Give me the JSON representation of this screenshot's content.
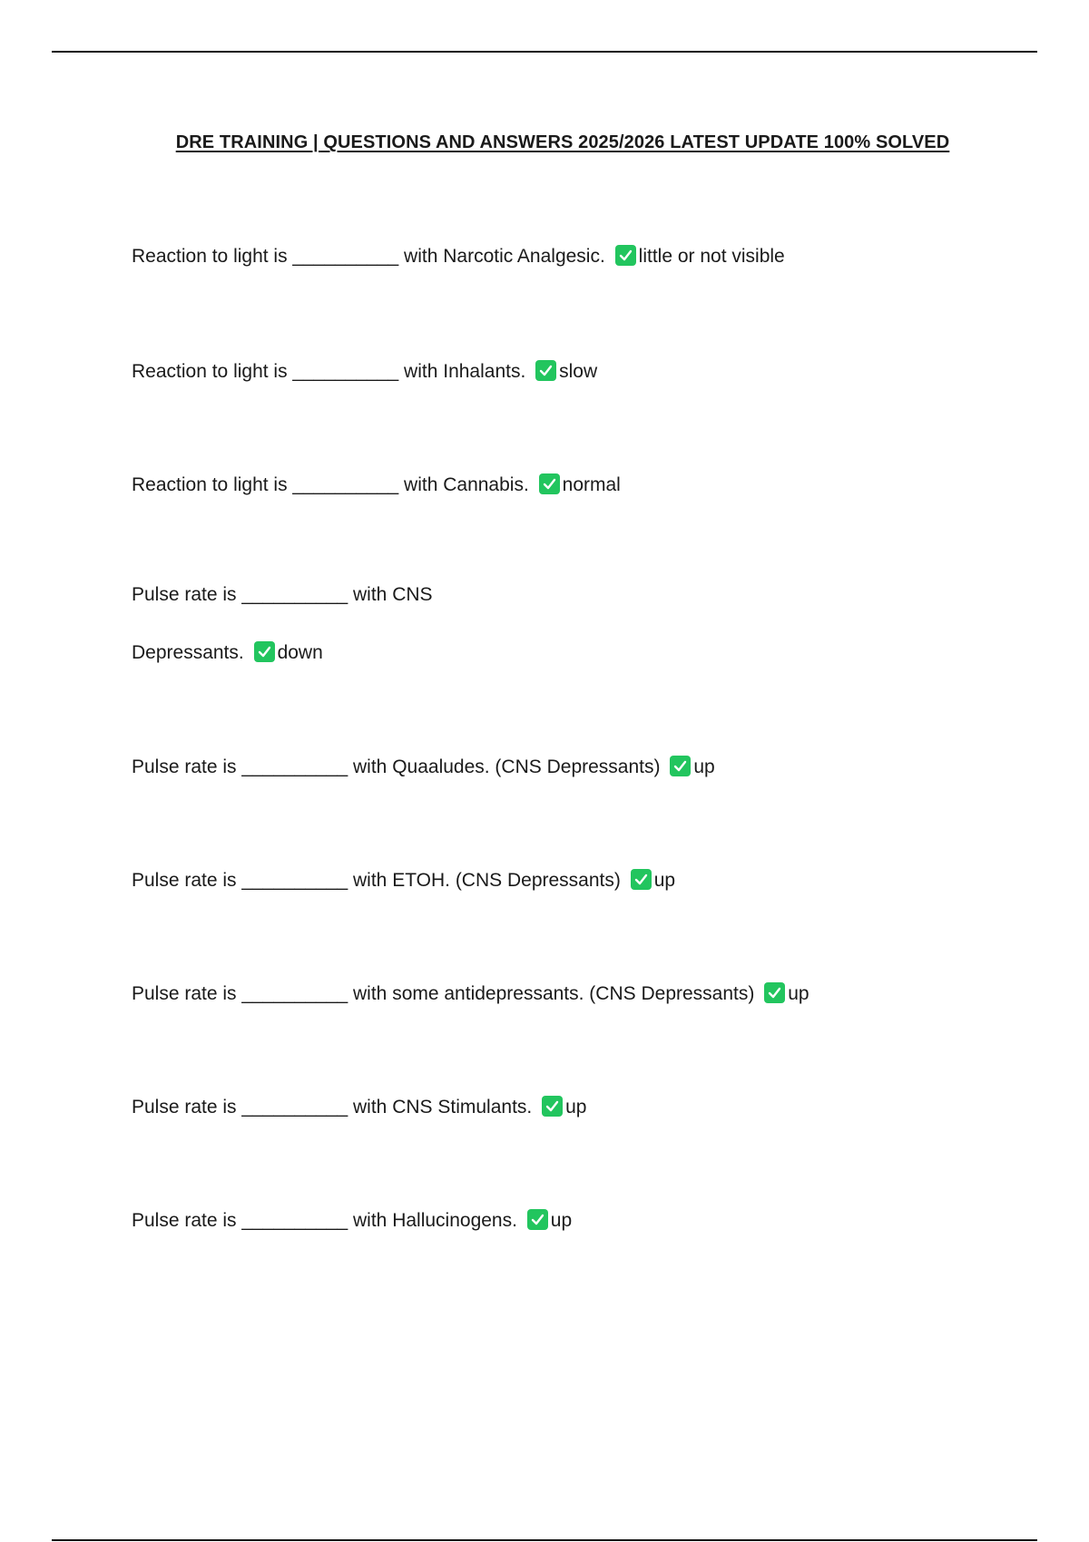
{
  "document": {
    "title": "DRE TRAINING | QUESTIONS AND ANSWERS 2025/2026 LATEST UPDATE 100% SOLVED",
    "items": [
      {
        "question": "Reaction to light is __________ with Narcotic Analgesic.",
        "answer": "little or not visible"
      },
      {
        "question": "Reaction to light is __________ with Inhalants.",
        "answer": "slow"
      },
      {
        "question": "Reaction to light is __________ with Cannabis.",
        "answer": "normal"
      },
      {
        "question_line1": "Pulse rate is __________ with CNS",
        "question_line2": "Depressants.",
        "answer": "down"
      },
      {
        "question": "Pulse rate is __________ with Quaaludes. (CNS Depressants)",
        "answer": "up"
      },
      {
        "question": "Pulse rate is __________ with ETOH. (CNS Depressants)",
        "answer": "up"
      },
      {
        "question": "Pulse rate is __________ with some antidepressants. (CNS Depressants)",
        "answer": "up"
      },
      {
        "question": "Pulse rate is __________ with CNS Stimulants.",
        "answer": "up"
      },
      {
        "question": "Pulse rate is __________ with Hallucinogens.",
        "answer": "up"
      }
    ],
    "check_icon": "check-mark-icon",
    "check_color": "#22c55e"
  }
}
